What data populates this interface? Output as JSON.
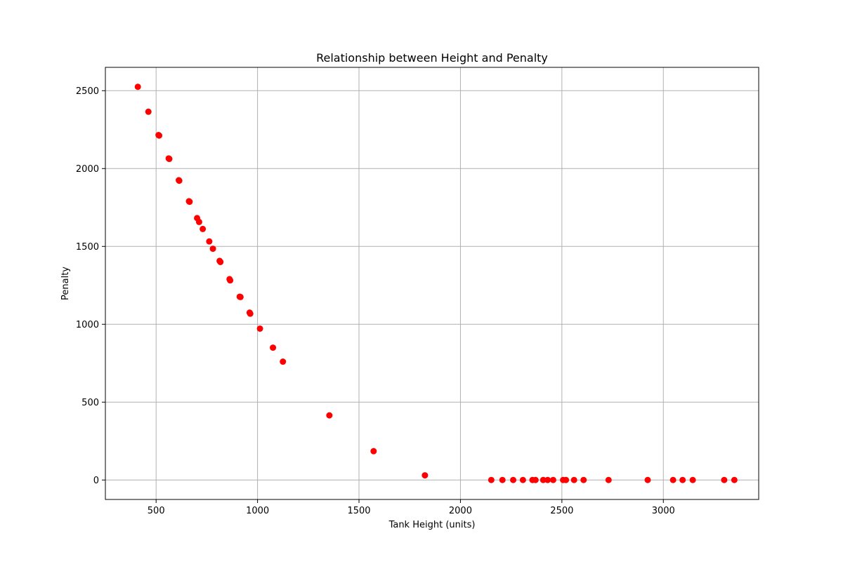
{
  "chart_data": {
    "type": "scatter",
    "title": "Relationship between Height and Penalty",
    "xlabel": "Tank Height (units)",
    "ylabel": "Penalty",
    "xlim": [
      250,
      3470
    ],
    "ylim": [
      -125,
      2650
    ],
    "xticks": [
      500,
      1000,
      1500,
      2000,
      2500,
      3000
    ],
    "yticks": [
      0,
      500,
      1000,
      1500,
      2000,
      2500
    ],
    "grid": true,
    "marker_color": "#ff0000",
    "series": [
      {
        "x": [
          410,
          462,
          512,
          515,
          562,
          565,
          612,
          614,
          662,
          665,
          702,
          712,
          730,
          762,
          780,
          813,
          817,
          862,
          865,
          912,
          916,
          961,
          964,
          1012,
          1076,
          1125,
          1354,
          1572,
          1825,
          2152,
          2207,
          2260,
          2308,
          2355,
          2370,
          2408,
          2430,
          2457,
          2506,
          2520,
          2560,
          2607,
          2730,
          2923,
          3048,
          3095,
          3145,
          3300,
          3350
        ],
        "y": [
          2525,
          2365,
          2215,
          2212,
          2065,
          2062,
          1925,
          1922,
          1790,
          1787,
          1682,
          1657,
          1612,
          1532,
          1485,
          1407,
          1400,
          1290,
          1282,
          1177,
          1175,
          1075,
          1068,
          972,
          850,
          760,
          415,
          185,
          30,
          0,
          0,
          0,
          0,
          0,
          0,
          0,
          0,
          0,
          0,
          0,
          0,
          0,
          0,
          0,
          0,
          0,
          0,
          0,
          0
        ]
      }
    ]
  }
}
